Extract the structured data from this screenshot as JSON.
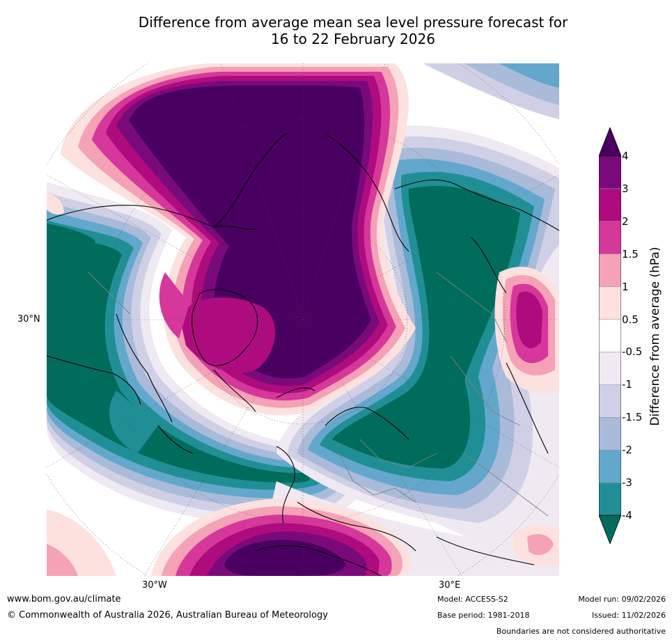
{
  "title": {
    "line1": "Difference from average mean sea level pressure forecast for",
    "line2": "16 to 22 February 2026"
  },
  "map": {
    "lat_label": "30°N",
    "lon_labels": [
      "30°W",
      "30°E"
    ],
    "colors": {
      "deep_purple": "#4a0060",
      "purple": "#7a0a7c",
      "magenta": "#ae0c7e",
      "pink": "#d6379a",
      "light_pink": "#f5a1b6",
      "pale_pink": "#fde1df",
      "pale_lilac": "#efe9f2",
      "lilac": "#cfd0e6",
      "grey_blue": "#a9bbd9",
      "blue": "#64a7cc",
      "teal": "#208f95",
      "dark_teal": "#006c5c"
    }
  },
  "colorbar": {
    "label": "Difference from average (hPa)",
    "ticks": [
      "4",
      "3",
      "2",
      "1.5",
      "1",
      "0.5",
      "-0.5",
      "-1",
      "-1.5",
      "-2",
      "-3",
      "-4"
    ],
    "colors": [
      "#4a0060",
      "#7a0a7c",
      "#ae0c7e",
      "#d6379a",
      "#f5a1b6",
      "#fde1df",
      "#ffffff",
      "#efe9f2",
      "#cfd0e6",
      "#a9bbd9",
      "#64a7cc",
      "#208f95",
      "#006c5c"
    ]
  },
  "footer": {
    "website": "www.bom.gov.au/climate",
    "copyright": "© Commonwealth of Australia 2026, Australian Bureau of Meteorology",
    "model": "Model: ACCESS-S2",
    "base_period": "Base period: 1981-2018",
    "model_run": "Model run: 09/02/2026",
    "issued": "Issued: 11/02/2026",
    "disclaimer": "Boundaries are not considered authoritative"
  }
}
